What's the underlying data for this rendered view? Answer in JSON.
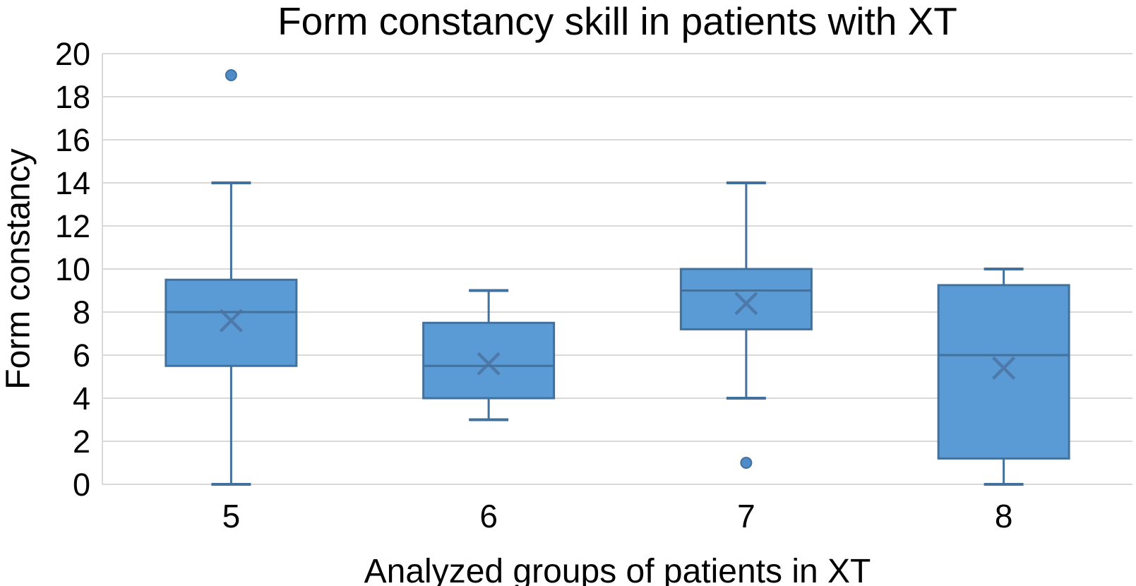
{
  "chart_data": {
    "type": "box",
    "title": "Form constancy skill in patients with XT",
    "xlabel": "Analyzed groups of patients in XT",
    "ylabel": "Form constancy",
    "ylim": [
      0,
      20
    ],
    "yticks": [
      0,
      2,
      4,
      6,
      8,
      10,
      12,
      14,
      16,
      18,
      20
    ],
    "categories": [
      "5",
      "6",
      "7",
      "8"
    ],
    "series": [
      {
        "category": "5",
        "whisker_low": 0,
        "q1": 5.5,
        "median": 8,
        "q3": 9.5,
        "whisker_high": 14,
        "mean": 7.6,
        "outliers": [
          19
        ]
      },
      {
        "category": "6",
        "whisker_low": 3,
        "q1": 4,
        "median": 5.5,
        "q3": 7.5,
        "whisker_high": 9,
        "mean": 5.6,
        "outliers": []
      },
      {
        "category": "7",
        "whisker_low": 4,
        "q1": 7.2,
        "median": 9,
        "q3": 10,
        "whisker_high": 14,
        "mean": 8.4,
        "outliers": [
          1
        ]
      },
      {
        "category": "8",
        "whisker_low": 0,
        "q1": 1.2,
        "median": 6,
        "q3": 9.25,
        "whisker_high": 10,
        "mean": 5.4,
        "outliers": []
      }
    ],
    "legend": "none",
    "grid": "horizontal",
    "colors": {
      "box_fill": "#5b9bd5",
      "box_line": "#41719c",
      "mean_marker": "#4a729f",
      "outlier_fill": "#4e8bc8",
      "gridline": "#d9d9d9",
      "text": "#000000",
      "background": "#ffffff"
    }
  }
}
